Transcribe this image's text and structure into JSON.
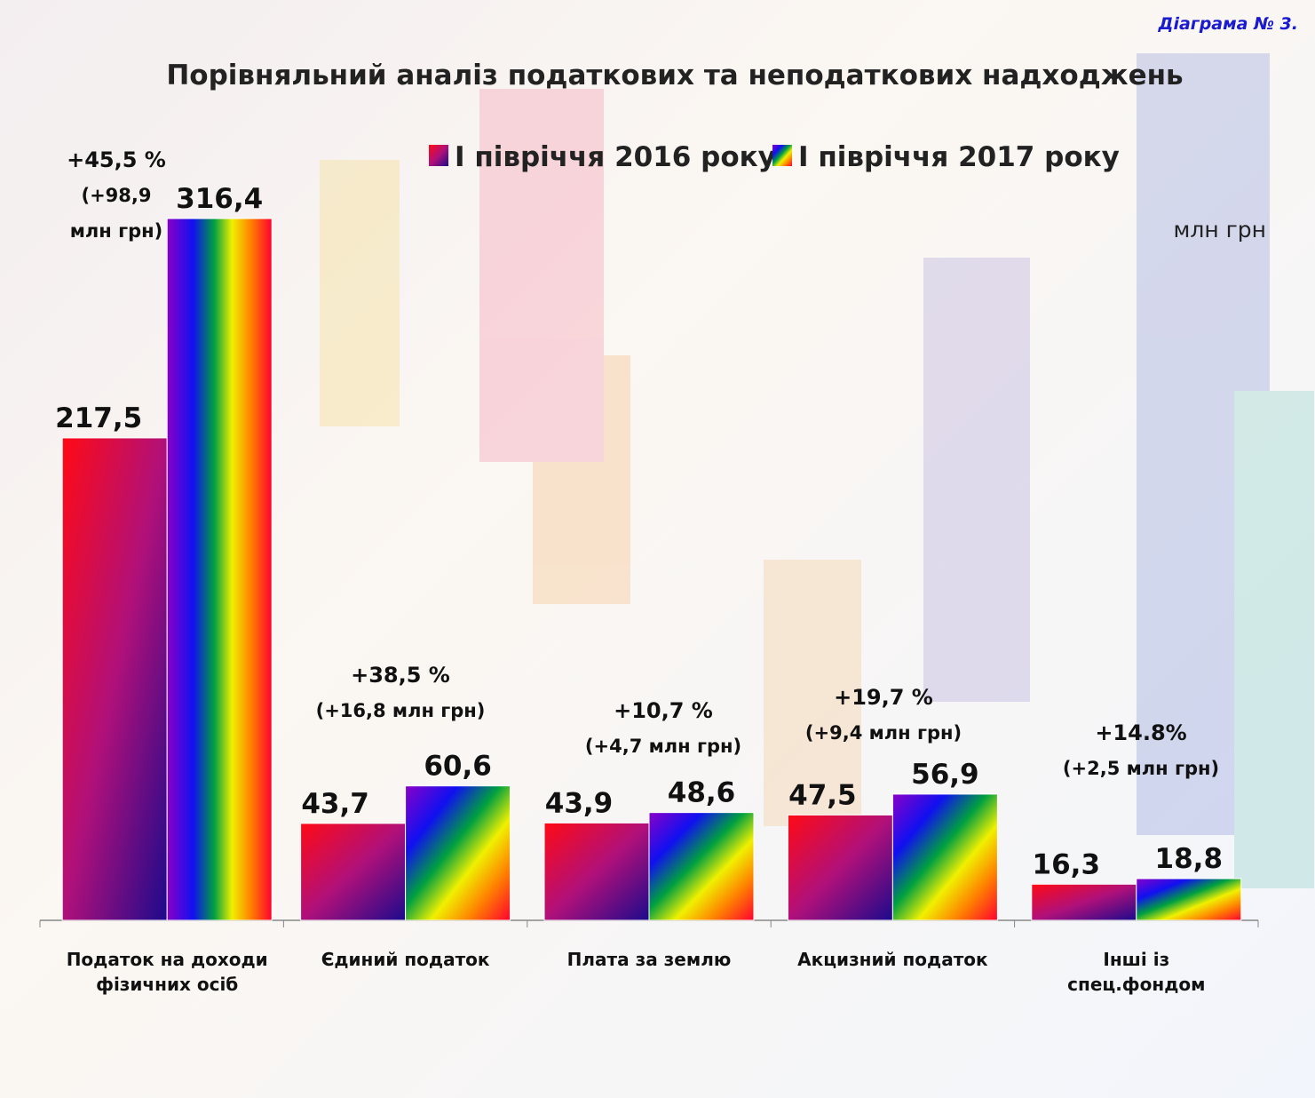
{
  "chart_data": {
    "type": "bar",
    "title": "Порівняльний аналіз податкових та неподаткових надходжень",
    "diagram_label": "Діаграма № 3.",
    "unit": "млн грн",
    "categories": [
      "Податок на доходи фізичних осіб",
      "Єдиний податок",
      "Плата за землю",
      "Акцизний податок",
      "Інші із спец.фондом"
    ],
    "series": [
      {
        "name": "І півріччя 2016 року",
        "values": [
          217.5,
          43.7,
          43.9,
          47.5,
          16.3
        ],
        "value_labels": [
          "217,5",
          "43,7",
          "43,9",
          "47,5",
          "16,3"
        ]
      },
      {
        "name": "І півріччя 2017 року",
        "values": [
          316.4,
          60.6,
          48.6,
          56.9,
          18.8
        ],
        "value_labels": [
          "316,4",
          "60,6",
          "48,6",
          "56,9",
          "18,8"
        ]
      }
    ],
    "annotations": [
      {
        "percent": "+45,5 %",
        "amount": "(+98,9 млн грн)"
      },
      {
        "percent": "+38,5 %",
        "amount": "(+16,8 млн грн)"
      },
      {
        "percent": "+10,7 %",
        "amount": "(+4,7 млн грн)"
      },
      {
        "percent": "+19,7 %",
        "amount": "(+9,4 млн грн)"
      },
      {
        "percent": "+14.8%",
        "amount": "(+2,5 млн грн)"
      }
    ]
  }
}
